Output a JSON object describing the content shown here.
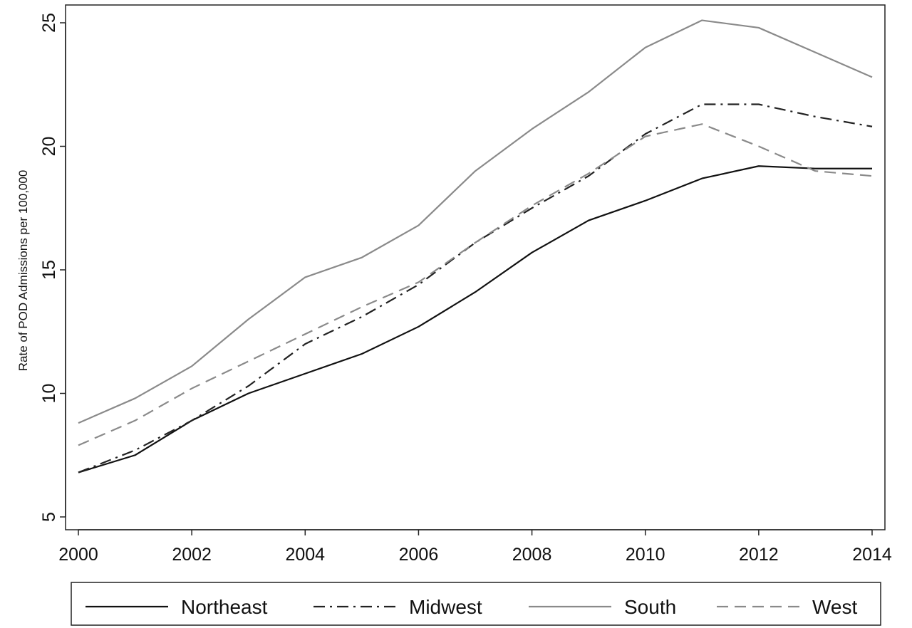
{
  "chart_data": {
    "type": "line",
    "title": "",
    "xlabel": "",
    "ylabel": "Rate of POD Admissions per 100,000",
    "x": [
      2000,
      2001,
      2002,
      2003,
      2004,
      2005,
      2006,
      2007,
      2008,
      2009,
      2010,
      2011,
      2012,
      2013,
      2014
    ],
    "xticks": [
      "2000",
      "2002",
      "2004",
      "2006",
      "2008",
      "2010",
      "2012",
      "2014"
    ],
    "xlim": [
      2000,
      2014
    ],
    "yticks": [
      "5",
      "10",
      "15",
      "20",
      "25"
    ],
    "ylim": [
      5,
      25
    ],
    "grid": false,
    "legend_position": "bottom",
    "series": [
      {
        "name": "Northeast",
        "style": "solid",
        "color": "#111111",
        "values": [
          6.8,
          7.5,
          8.9,
          10.0,
          10.8,
          11.6,
          12.7,
          14.1,
          15.7,
          17.0,
          17.8,
          18.7,
          19.2,
          19.1,
          19.1
        ]
      },
      {
        "name": "Midwest",
        "style": "dashdot",
        "color": "#222222",
        "values": [
          6.8,
          7.7,
          8.9,
          10.3,
          12.0,
          13.1,
          14.4,
          16.1,
          17.5,
          18.8,
          20.5,
          21.7,
          21.7,
          21.2,
          20.8
        ]
      },
      {
        "name": "South",
        "style": "solid",
        "color": "#8a8a8a",
        "values": [
          8.8,
          9.8,
          11.1,
          13.0,
          14.7,
          15.5,
          16.8,
          19.0,
          20.7,
          22.2,
          24.0,
          25.1,
          24.8,
          23.8,
          22.8
        ]
      },
      {
        "name": "West",
        "style": "dashed",
        "color": "#8a8a8a",
        "values": [
          7.9,
          8.9,
          10.2,
          11.3,
          12.4,
          13.5,
          14.5,
          16.1,
          17.6,
          18.9,
          20.4,
          20.9,
          20.0,
          19.0,
          18.8
        ]
      }
    ]
  }
}
